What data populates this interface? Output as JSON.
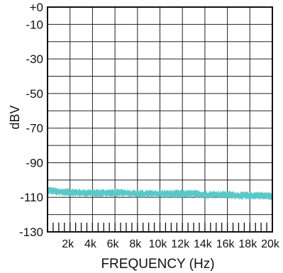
{
  "chart_data": {
    "type": "line",
    "title": "",
    "xlabel": "FREQUENCY (Hz)",
    "ylabel": "dBV",
    "xlim": [
      0,
      20000
    ],
    "ylim": [
      -130,
      0
    ],
    "x_tick_values": [
      2000,
      4000,
      6000,
      8000,
      10000,
      12000,
      14000,
      16000,
      18000,
      20000
    ],
    "x_tick_labels": [
      "2k",
      "4k",
      "6k",
      "8k",
      "10k",
      "12k",
      "14k",
      "16k",
      "18k",
      "20k"
    ],
    "y_tick_values": [
      0,
      -10,
      -30,
      -50,
      -70,
      -90,
      -110,
      -130
    ],
    "y_tick_labels": [
      "+0",
      "-10",
      "-30",
      "-50",
      "-70",
      "-90",
      "-110",
      "-130"
    ],
    "grid": true,
    "series": [
      {
        "color": "#5bc8c8",
        "band_width_db": 3.5,
        "x": [
          100,
          1000,
          2000,
          3000,
          4000,
          5000,
          6000,
          7000,
          8000,
          9000,
          10000,
          11000,
          12000,
          13000,
          14000,
          15000,
          16000,
          17000,
          18000,
          19000,
          20000
        ],
        "y": [
          -106,
          -107,
          -107,
          -107.5,
          -107.5,
          -107.5,
          -107.5,
          -107.5,
          -108,
          -108,
          -108,
          -108,
          -108,
          -108,
          -108.5,
          -108.5,
          -108.5,
          -109,
          -109,
          -109,
          -109.5
        ]
      }
    ]
  }
}
